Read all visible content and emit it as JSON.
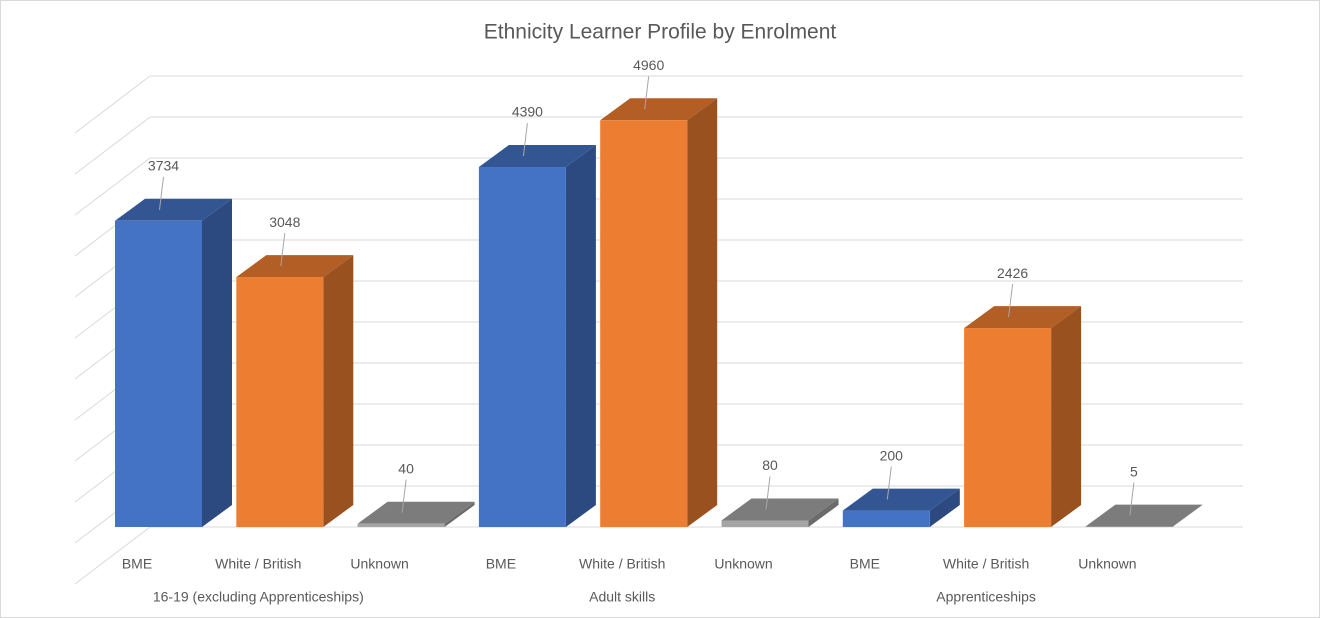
{
  "chart_data": {
    "type": "bar3d",
    "title": "Ethnicity Learner Profile by Enrolment",
    "categories": [
      "16-19 (excluding Apprenticeships)",
      "Adult skills",
      "Apprenticeships"
    ],
    "series": [
      {
        "name": "BME",
        "color": "#4472c4",
        "values": [
          3734,
          4390,
          200
        ]
      },
      {
        "name": "White / British",
        "color": "#ed7d31",
        "values": [
          3048,
          4960,
          2426
        ]
      },
      {
        "name": "Unknown",
        "color": "#a5a5a5",
        "values": [
          40,
          80,
          5
        ]
      }
    ],
    "ylim": [
      0,
      5500
    ],
    "yticks": [
      0,
      500,
      1000,
      1500,
      2000,
      2500,
      3000,
      3500,
      4000,
      4500,
      5000,
      5500
    ],
    "grid": true
  }
}
